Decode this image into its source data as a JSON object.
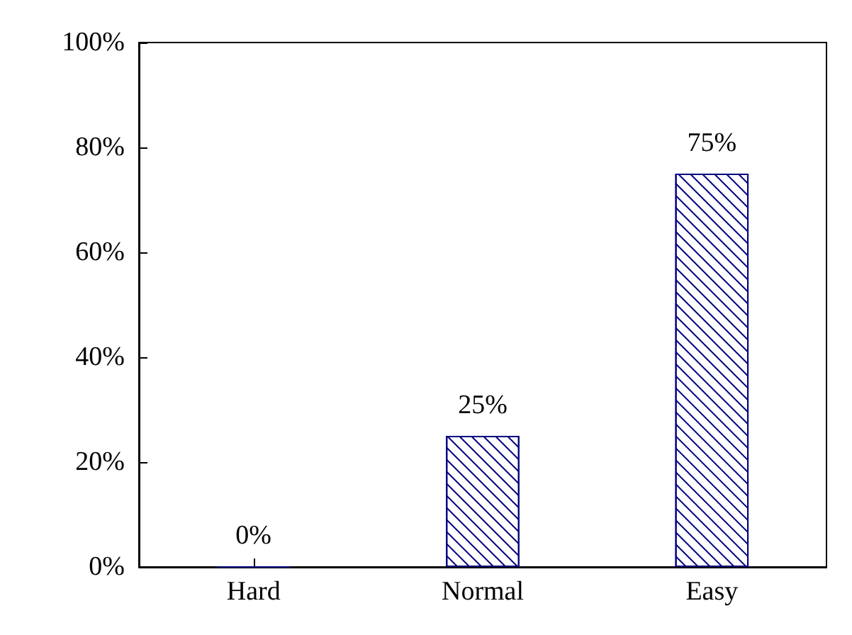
{
  "chart_data": {
    "type": "bar",
    "categories": [
      "Hard",
      "Normal",
      "Easy"
    ],
    "series": [
      {
        "color": "#000080",
        "values": [
          0,
          25,
          75
        ],
        "value_labels": [
          "0%",
          "25%",
          "75%"
        ]
      }
    ],
    "ylim": [
      0,
      100
    ],
    "yticks": [
      {
        "value": 0,
        "label": "0%"
      },
      {
        "value": 20,
        "label": "20%"
      },
      {
        "value": 40,
        "label": "40%"
      },
      {
        "value": 60,
        "label": "60%"
      },
      {
        "value": 80,
        "label": "80%"
      },
      {
        "value": 100,
        "label": "100%"
      }
    ],
    "grid": false
  }
}
